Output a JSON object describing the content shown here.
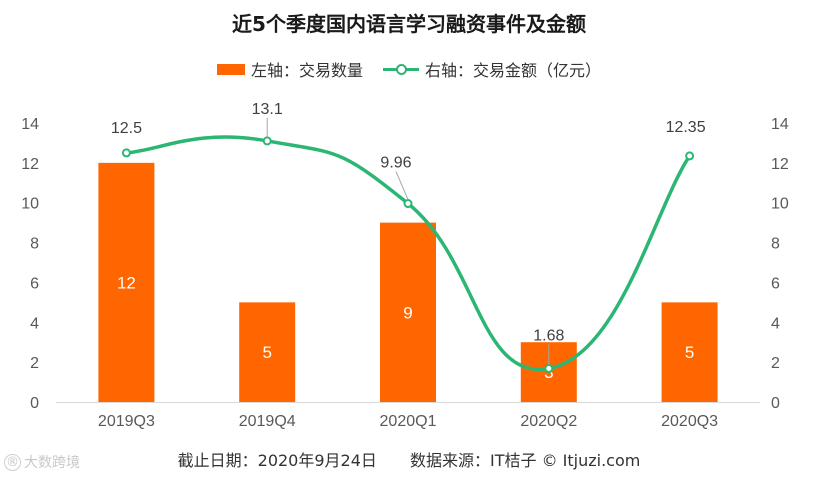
{
  "chart_data": {
    "type": "bar+line",
    "title": "近5个季度国内语言学习融资事件及金额",
    "categories": [
      "2019Q3",
      "2019Q4",
      "2020Q1",
      "2020Q2",
      "2020Q3"
    ],
    "series": [
      {
        "name": "左轴：交易数量",
        "type": "bar",
        "axis": "left",
        "values": [
          12,
          5,
          9,
          3,
          5
        ],
        "color": "#ff6600"
      },
      {
        "name": "右轴：交易金额（亿元）",
        "type": "line",
        "axis": "right",
        "smooth": true,
        "values": [
          12.5,
          13.1,
          9.96,
          1.68,
          12.35
        ],
        "color": "#2bb673"
      }
    ],
    "bar_labels": [
      "12",
      "5",
      "9",
      "3",
      "5"
    ],
    "line_labels": [
      "12.5",
      "13.1",
      "9.96",
      "1.68",
      "12.35"
    ],
    "ylim_left": [
      0,
      14
    ],
    "ylim_right": [
      0,
      14
    ],
    "yticks": [
      "0",
      "2",
      "4",
      "6",
      "8",
      "10",
      "12",
      "14"
    ],
    "legend_position": "top-center",
    "grid": false
  },
  "legend": {
    "bar_label": "左轴：交易数量",
    "line_label": "右轴：交易金额（亿元）"
  },
  "footer": {
    "date": "截止日期：2020年9月24日",
    "source": "数据来源：IT桔子 © Itjuzi.com"
  },
  "watermark": {
    "text": "大数跨境"
  }
}
